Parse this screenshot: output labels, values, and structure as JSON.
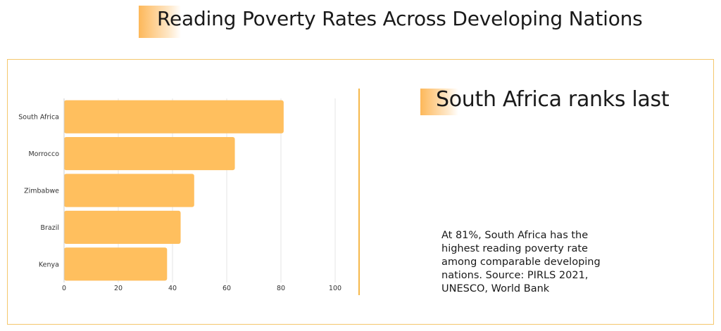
{
  "header": {
    "title": "Reading Poverty Rates Across Developing Nations"
  },
  "panel": {
    "headline": "South Africa ranks last",
    "description": "At 81%, South Africa has the highest reading poverty rate among comparable developing nations. Source: PIRLS 2021, UNESCO, World Bank"
  },
  "colors": {
    "accent": "#fdb85a",
    "bar": "#ffbf5e",
    "border": "#f5c76d",
    "grid": "#e6e6e6"
  },
  "chart_data": {
    "type": "bar",
    "orientation": "horizontal",
    "categories": [
      "South Africa",
      "Morrocco",
      "Zimbabwe",
      "Brazil",
      "Kenya"
    ],
    "values": [
      81,
      63,
      48,
      43,
      38
    ],
    "xlim": [
      0,
      100
    ],
    "xticks": [
      0,
      20,
      40,
      60,
      80,
      100
    ],
    "title": "",
    "xlabel": "",
    "ylabel": "",
    "grid": true,
    "legend": "none"
  }
}
